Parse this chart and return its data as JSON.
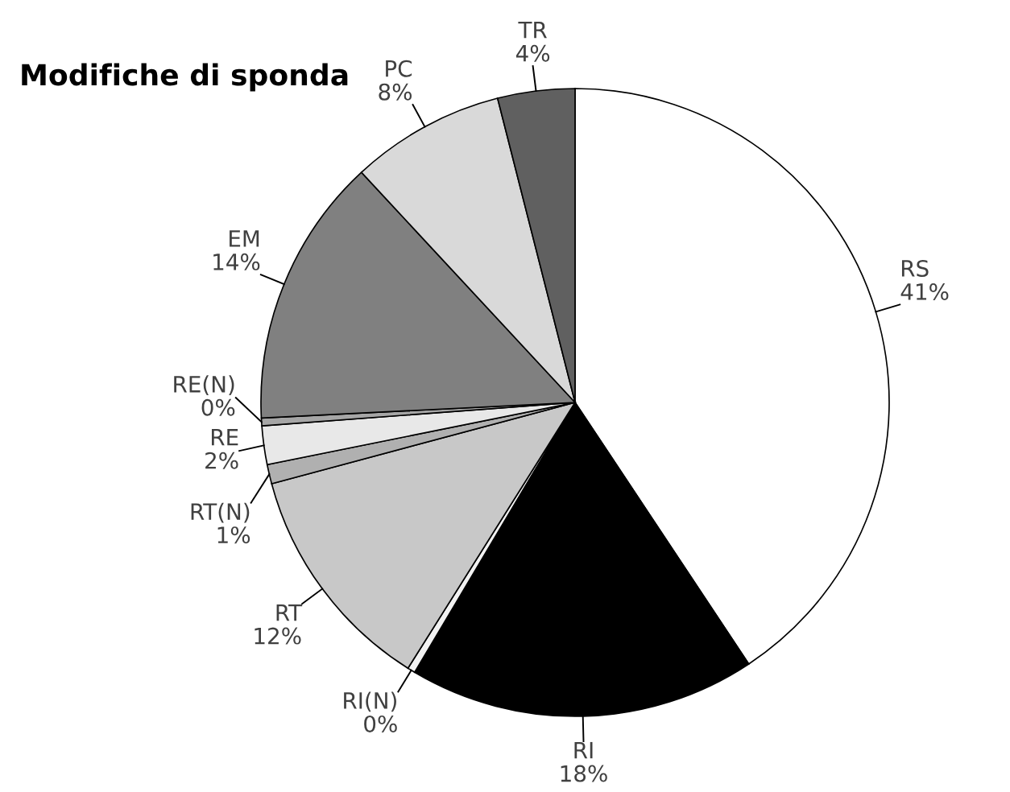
{
  "chart_data": {
    "type": "pie",
    "title": "Modifiche di sponda",
    "categories": [
      "RS",
      "RI",
      "RI(N)",
      "RT",
      "RT(N)",
      "RE",
      "RE(N)",
      "EM",
      "PC",
      "TR"
    ],
    "values": [
      41,
      18,
      0.4,
      12,
      1,
      2,
      0.4,
      14,
      8,
      4
    ],
    "value_labels": [
      "41%",
      "18%",
      "0%",
      "12%",
      "1%",
      "2%",
      "0%",
      "14%",
      "8%",
      "4%"
    ],
    "colors": [
      "#ffffff",
      "#000000",
      "#f2f2f2",
      "#c8c8c8",
      "#b0b0b0",
      "#e8e8e8",
      "#a6a6a6",
      "#808080",
      "#d9d9d9",
      "#606060"
    ]
  }
}
